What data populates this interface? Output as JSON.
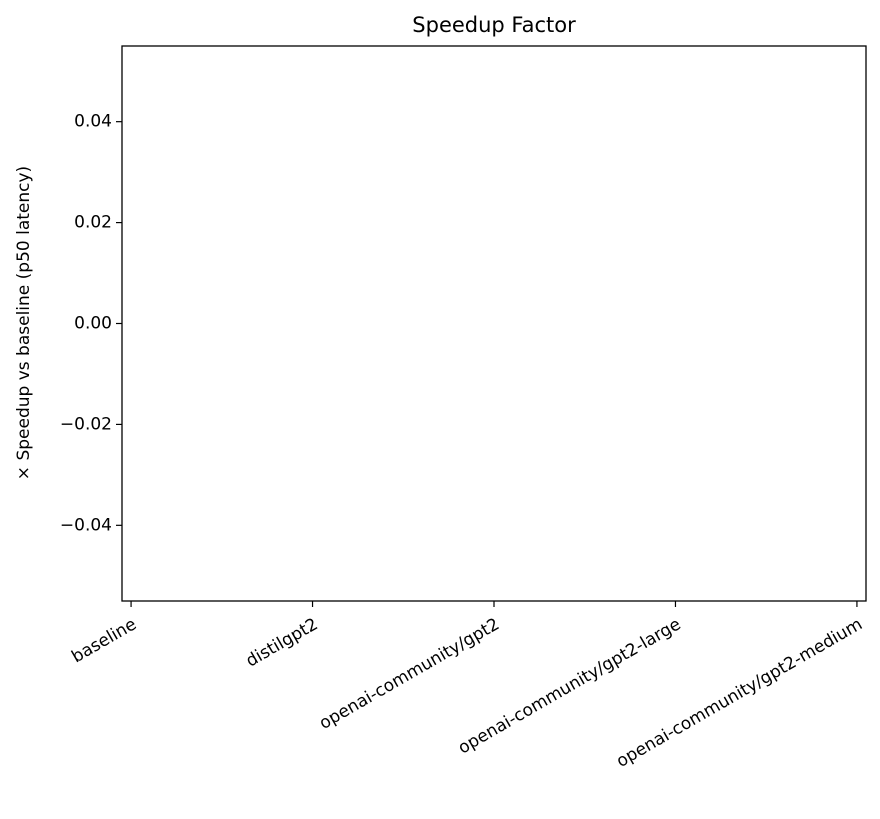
{
  "chart_data": {
    "type": "bar",
    "title": "Speedup Factor",
    "y_label": "× Speedup vs baseline (p50 latency)",
    "categories": [
      "baseline",
      "distilgpt2",
      "openai-community/gpt2",
      "openai-community/gpt2-large",
      "openai-community/gpt2-medium"
    ],
    "values": [
      null,
      null,
      null,
      null,
      null
    ],
    "ylim": [
      -0.055,
      0.055
    ],
    "yticks": [
      {
        "value": -0.04,
        "label": "−0.04"
      },
      {
        "value": -0.02,
        "label": "−0.02"
      },
      {
        "value": 0,
        "label": "0.00"
      },
      0.02,
      0.04
    ],
    "grid": false
  }
}
